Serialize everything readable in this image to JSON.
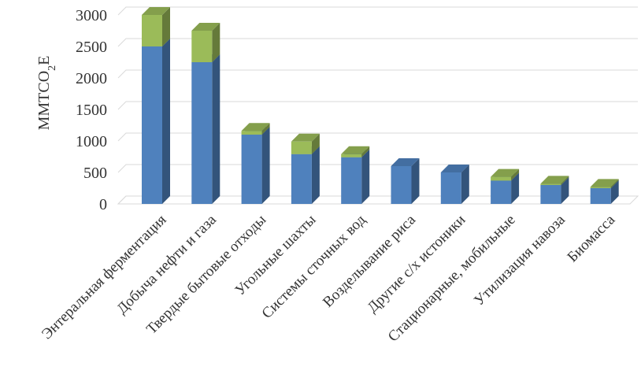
{
  "chart_data": {
    "type": "bar",
    "stacked": true,
    "three_d": true,
    "ylabel": "MMTCO2E",
    "ylim": [
      0,
      3000
    ],
    "yticks": [
      0,
      500,
      1000,
      1500,
      2000,
      2500,
      3000
    ],
    "grid": true,
    "legend": "none",
    "categories": [
      "Энтеральная ферментация",
      "Добыча нефти и газа",
      "Твердые бытовые отходы",
      "Угольные шахты",
      "Системы сточных вод",
      "Возделывание риса",
      "Другие с/х истоники",
      "Стационарные, мобильные",
      "Утилизация навоза",
      "Биомасса"
    ],
    "series": [
      {
        "values": [
          2500,
          2250,
          1100,
          790,
          740,
          600,
          500,
          370,
          300,
          250
        ],
        "color": "#4F81BD"
      },
      {
        "values": [
          500,
          500,
          60,
          200,
          50,
          0,
          0,
          60,
          20,
          20
        ],
        "color": "#9BBB59"
      }
    ]
  }
}
